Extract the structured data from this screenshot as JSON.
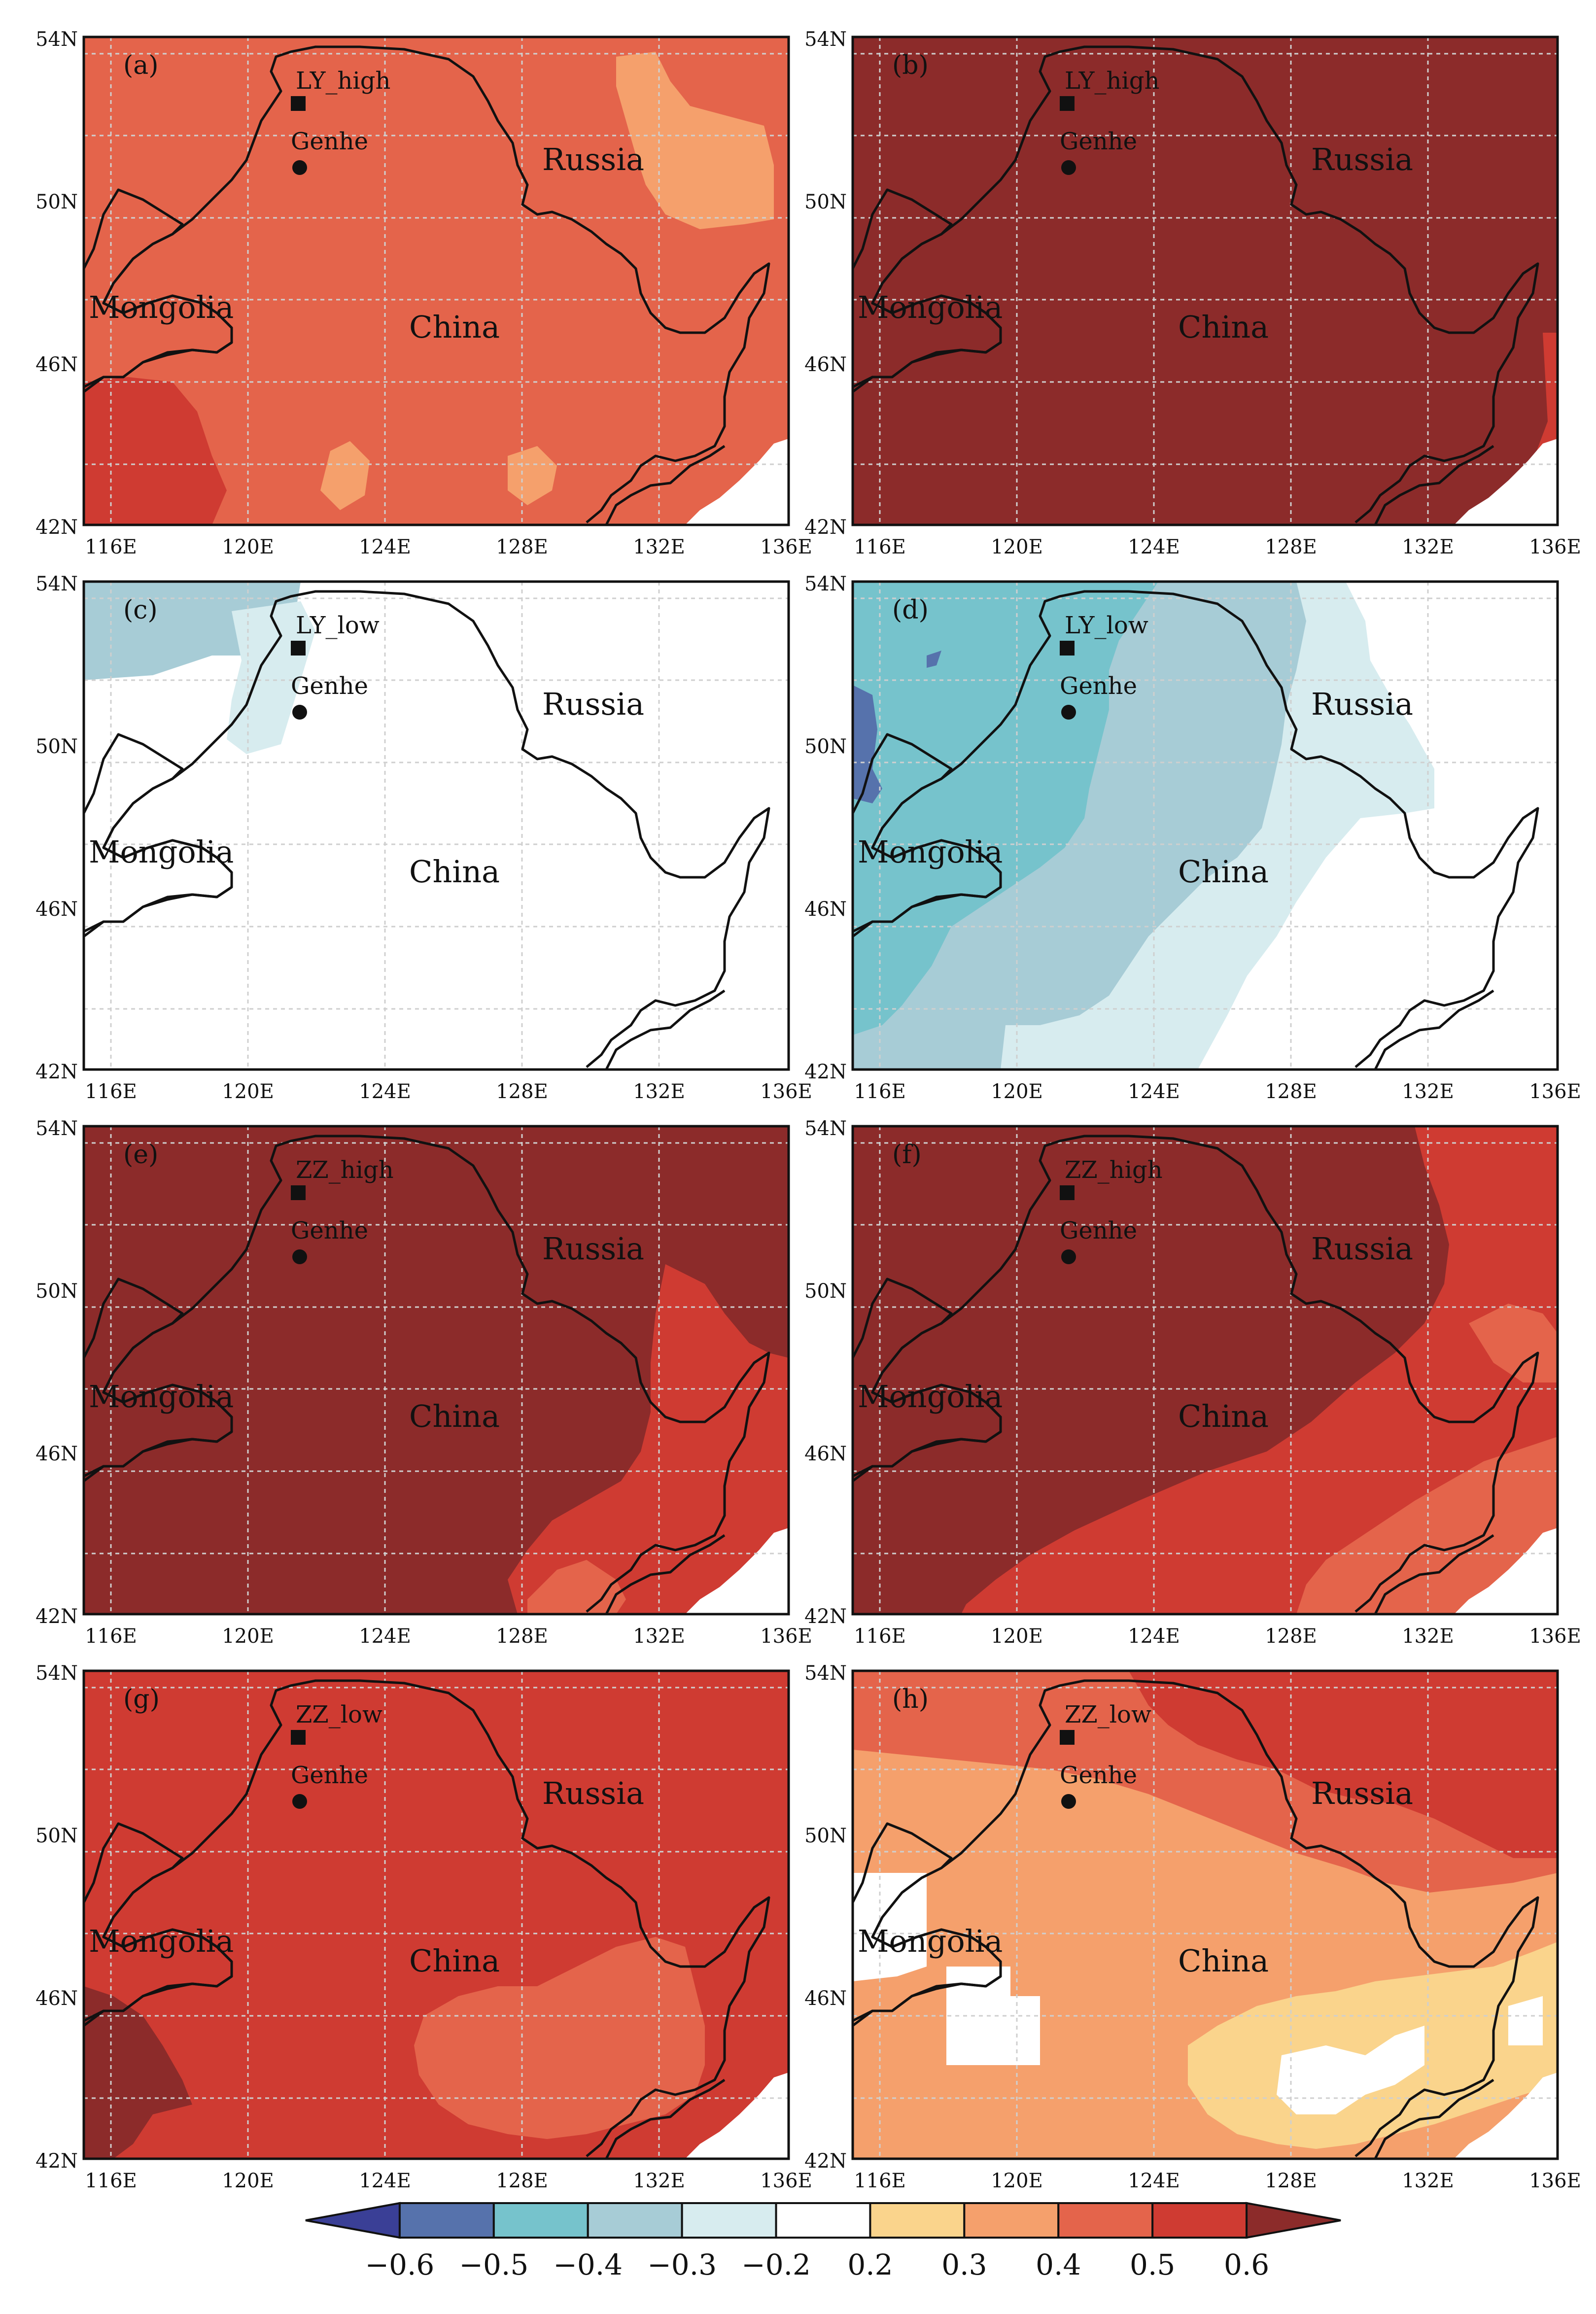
{
  "panels": [
    {
      "letter": "(a)",
      "station": "LY_high",
      "fill": "#e4644b",
      "overlays": [
        {
          "color": "#f5a06c",
          "shape": "patch-ne"
        },
        {
          "color": "#cf3b32",
          "shape": "patch-sw"
        },
        {
          "color": "#f5a06c",
          "shape": "patch-se"
        }
      ]
    },
    {
      "letter": "(b)",
      "station": "LY_high",
      "fill": "#8c2b2a",
      "overlays": [
        {
          "color": "#cf3b32",
          "shape": "edge-se"
        }
      ]
    },
    {
      "letter": "(c)",
      "station": "LY_low",
      "fill": "#ffffff",
      "overlays": [
        {
          "color": "#a7ccd6",
          "shape": "band-nw"
        },
        {
          "color": "#d7ecef",
          "shape": "patch-genhe"
        }
      ]
    },
    {
      "letter": "(d)",
      "station": "LY_low",
      "fill": "#ffffff",
      "overlays": [
        {
          "color": "#d7ecef",
          "shape": "tongue-light"
        },
        {
          "color": "#a7ccd6",
          "shape": "tongue-mid"
        },
        {
          "color": "#76c3cc",
          "shape": "tongue-dark"
        },
        {
          "color": "#5672ac",
          "shape": "edge-w"
        }
      ]
    },
    {
      "letter": "(e)",
      "station": "ZZ_high",
      "fill": "#8c2b2a",
      "overlays": [
        {
          "color": "#cf3b32",
          "shape": "patch-east"
        },
        {
          "color": "#e4644b",
          "shape": "patch-se-small"
        }
      ]
    },
    {
      "letter": "(f)",
      "station": "ZZ_high",
      "fill": "#cf3b32",
      "overlays": [
        {
          "color": "#8c2b2a",
          "shape": "patch-west-big"
        },
        {
          "color": "#e4644b",
          "shape": "patch-se-mid"
        }
      ]
    },
    {
      "letter": "(g)",
      "station": "ZZ_low",
      "fill": "#cf3b32",
      "overlays": [
        {
          "color": "#e4644b",
          "shape": "patch-se-wide"
        },
        {
          "color": "#8c2b2a",
          "shape": "patch-sw-corner"
        }
      ]
    },
    {
      "letter": "(h)",
      "station": "ZZ_low",
      "fill": "#f5a06c",
      "overlays": [
        {
          "color": "#e4644b",
          "shape": "band-north"
        },
        {
          "color": "#cf3b32",
          "shape": "band-ne"
        },
        {
          "color": "#fad48c",
          "shape": "patch-yellow"
        },
        {
          "color": "#ffffff",
          "shape": "holes-white"
        }
      ]
    }
  ],
  "map_labels": {
    "genhe": "Genhe",
    "russia": "Russia",
    "china": "China",
    "mongolia": "Mongolia"
  },
  "lat_ticks": [
    "54N",
    "50N",
    "46N",
    "42N"
  ],
  "lon_ticks": [
    "116E",
    "120E",
    "124E",
    "128E",
    "132E",
    "136E"
  ],
  "colorbar": {
    "colors": [
      "#3a3f96",
      "#5672ac",
      "#76c3cc",
      "#a7ccd6",
      "#d7ecef",
      "#ffffff",
      "#fad48c",
      "#f5a06c",
      "#e4644b",
      "#cf3b32",
      "#8c2b2a"
    ],
    "labels": [
      "−0.6",
      "−0.5",
      "−0.4",
      "−0.3",
      "−0.2",
      "0.2",
      "0.3",
      "0.4",
      "0.5",
      "0.6"
    ]
  }
}
